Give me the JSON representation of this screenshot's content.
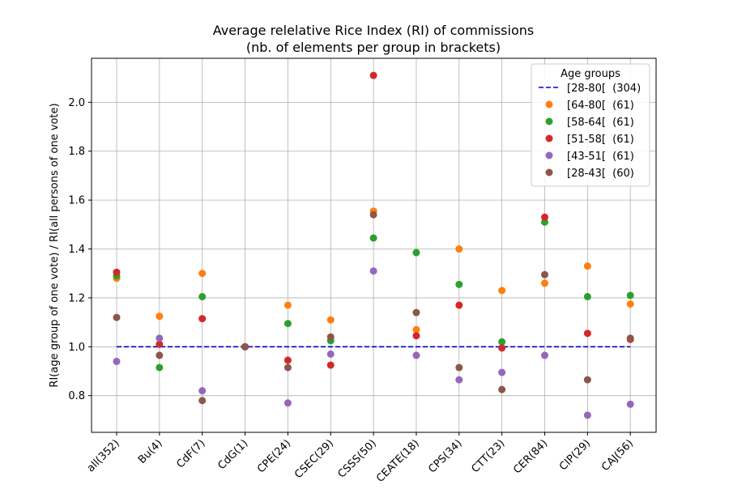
{
  "chart_data": {
    "type": "scatter",
    "title": "Average relelative Rice Index (RI) of commissions",
    "subtitle": "(nb. of elements per group in brackets)",
    "xlabel": "",
    "ylabel": "RI(age group of one vote) / RI(all persons of one vote)",
    "ylim": [
      0.65,
      2.18
    ],
    "yticks": [
      0.8,
      1.0,
      1.2,
      1.4,
      1.6,
      1.8,
      2.0
    ],
    "ytick_labels": [
      "0.8",
      "1.0",
      "1.2",
      "1.4",
      "1.6",
      "1.8",
      "2.0"
    ],
    "grid": true,
    "categories": [
      "all(352)",
      "Bu(4)",
      "CdF(7)",
      "CdG(1)",
      "CPE(24)",
      "CSEC(29)",
      "CSSS(50)",
      "CEATE(18)",
      "CPS(34)",
      "CTT(23)",
      "CER(84)",
      "CIP(29)",
      "CAJ(56)"
    ],
    "legend": {
      "title": "Age groups",
      "position": "top-right"
    },
    "reference_line": {
      "name": "[28-80[  (304)",
      "value": 1.0,
      "color": "#0000cc",
      "style": "dashed"
    },
    "series": [
      {
        "name": "[64-80[  (61)",
        "color": "#ff7f0e",
        "values": [
          1.28,
          1.125,
          1.3,
          1.0,
          1.17,
          1.11,
          1.555,
          1.07,
          1.4,
          1.23,
          1.26,
          1.33,
          1.175
        ]
      },
      {
        "name": "[58-64[  (61)",
        "color": "#2ca02c",
        "values": [
          1.29,
          0.915,
          1.205,
          1.0,
          1.095,
          1.025,
          1.445,
          1.385,
          1.255,
          1.02,
          1.51,
          1.205,
          1.21
        ]
      },
      {
        "name": "[51-58[  (61)",
        "color": "#d62728",
        "values": [
          1.305,
          1.01,
          1.115,
          1.0,
          0.945,
          0.925,
          2.11,
          1.045,
          1.17,
          0.995,
          1.53,
          1.055,
          1.03
        ]
      },
      {
        "name": "[43-51[  (61)",
        "color": "#9467bd",
        "values": [
          0.94,
          1.035,
          0.82,
          1.0,
          0.77,
          0.97,
          1.31,
          0.965,
          0.865,
          0.895,
          0.965,
          0.72,
          0.765
        ]
      },
      {
        "name": "[28-43[  (60)",
        "color": "#8c564b",
        "values": [
          1.12,
          0.965,
          0.78,
          1.0,
          0.915,
          1.04,
          1.54,
          1.14,
          0.915,
          0.825,
          1.295,
          0.865,
          1.035
        ]
      }
    ]
  }
}
